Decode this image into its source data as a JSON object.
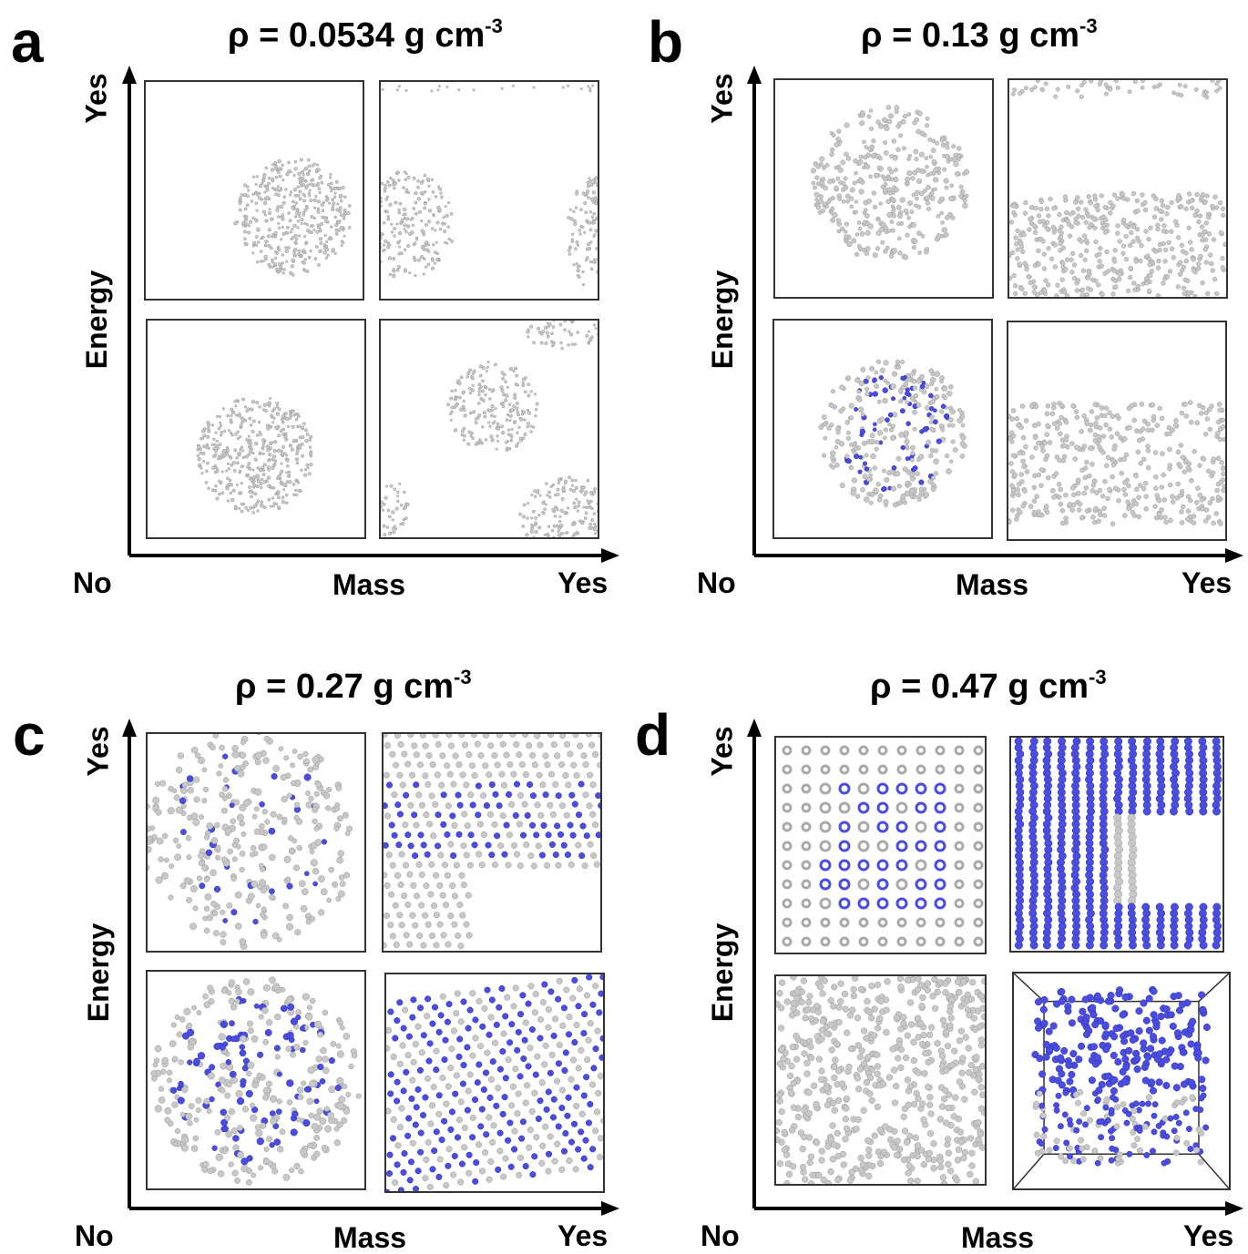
{
  "colors": {
    "atom_gray": "#c8c8c8",
    "atom_blue": "#4a4de0",
    "axis": "#000000"
  },
  "panels": [
    {
      "letter": "a",
      "title_main": "ρ = 0.0534 g cm",
      "title_sup": "-3",
      "y_axis": {
        "label": "Energy",
        "top": "Yes"
      },
      "x_axis": {
        "label": "Mass",
        "left": "No",
        "right": "Yes"
      }
    },
    {
      "letter": "b",
      "title_main": "ρ = 0.13 g cm",
      "title_sup": "-3",
      "y_axis": {
        "label": "Energy",
        "top": "Yes"
      },
      "x_axis": {
        "label": "Mass",
        "left": "No",
        "right": "Yes"
      }
    },
    {
      "letter": "c",
      "title_main": "ρ = 0.27 g cm",
      "title_sup": "-3",
      "y_axis": {
        "label": "Energy",
        "top": "Yes"
      },
      "x_axis": {
        "label": "Mass",
        "left": "No",
        "right": "Yes"
      }
    },
    {
      "letter": "d",
      "title_main": "ρ = 0.47 g cm",
      "title_sup": "-3",
      "y_axis": {
        "label": "Energy",
        "top": "Yes"
      },
      "x_axis": {
        "label": "Mass",
        "left": "No",
        "right": "Yes"
      }
    }
  ]
}
